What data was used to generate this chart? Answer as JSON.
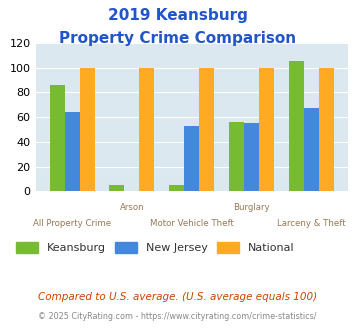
{
  "title_line1": "2019 Keansburg",
  "title_line2": "Property Crime Comparison",
  "categories": [
    "All Property Crime",
    "Arson",
    "Motor Vehicle Theft",
    "Burglary",
    "Larceny & Theft"
  ],
  "keansburg": [
    86,
    5,
    5,
    56,
    105
  ],
  "new_jersey": [
    64,
    0,
    53,
    55,
    67
  ],
  "national": [
    100,
    100,
    100,
    100,
    100
  ],
  "color_keansburg": "#77bb33",
  "color_nj": "#4488dd",
  "color_national": "#ffaa22",
  "ylim": [
    0,
    120
  ],
  "yticks": [
    0,
    20,
    40,
    60,
    80,
    100,
    120
  ],
  "legend_labels": [
    "Keansburg",
    "New Jersey",
    "National"
  ],
  "footnote1": "Compared to U.S. average. (U.S. average equals 100)",
  "footnote2": "© 2025 CityRating.com - https://www.cityrating.com/crime-statistics/",
  "bg_color": "#dce8f0",
  "title_color": "#2255cc",
  "label_color": "#997755",
  "footnote1_color": "#cc4400",
  "footnote2_color": "#888888",
  "bar_width": 0.25
}
